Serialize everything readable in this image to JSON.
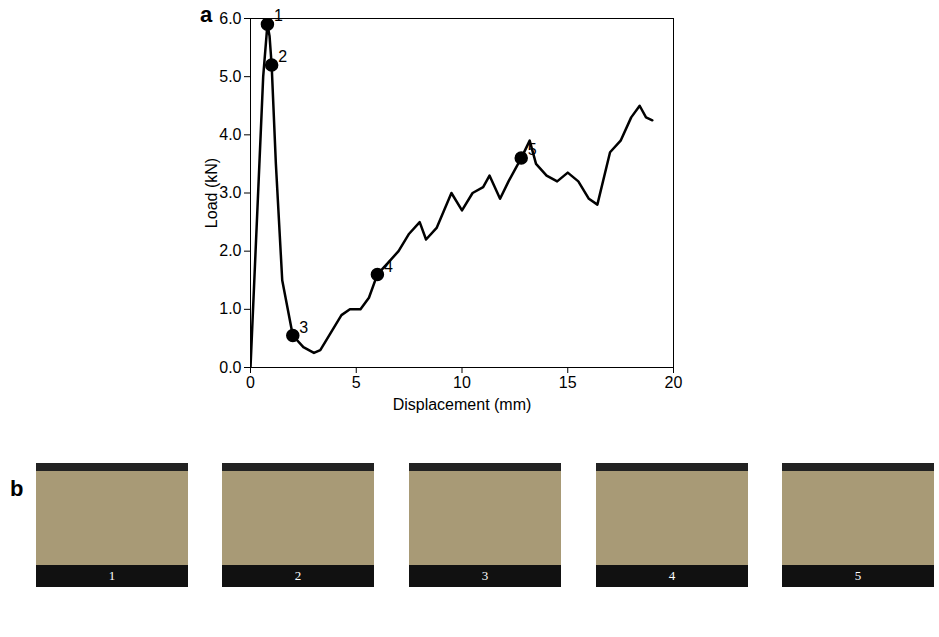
{
  "chart_data": {
    "type": "line",
    "panel_label": "a",
    "x_label": "Displacement (mm)",
    "y_label": "Load (kN)",
    "x": [
      0,
      0.3,
      0.6,
      0.8,
      0.9,
      1.0,
      1.2,
      1.5,
      2.0,
      2.5,
      3.0,
      3.3,
      3.8,
      4.3,
      4.7,
      5.2,
      5.6,
      6.0,
      6.5,
      7.0,
      7.5,
      8.0,
      8.3,
      8.8,
      9.5,
      10.0,
      10.5,
      11.0,
      11.3,
      11.8,
      12.2,
      12.8,
      13.2,
      13.5,
      14.0,
      14.5,
      15.0,
      15.5,
      16.0,
      16.4,
      17.0,
      17.5,
      18.0,
      18.4,
      18.7,
      19.0
    ],
    "values": [
      0,
      2.5,
      5.0,
      5.9,
      5.7,
      5.2,
      3.5,
      1.5,
      0.55,
      0.35,
      0.25,
      0.3,
      0.6,
      0.9,
      1.0,
      1.0,
      1.2,
      1.6,
      1.8,
      2.0,
      2.3,
      2.5,
      2.2,
      2.4,
      3.0,
      2.7,
      3.0,
      3.1,
      3.3,
      2.9,
      3.2,
      3.6,
      3.9,
      3.5,
      3.3,
      3.2,
      3.35,
      3.2,
      2.9,
      2.8,
      3.7,
      3.9,
      4.3,
      4.5,
      4.3,
      4.25
    ],
    "color": "#000000",
    "marker": "circle",
    "points": [
      {
        "label": "1",
        "x": 0.8,
        "y": 5.9
      },
      {
        "label": "2",
        "x": 1.0,
        "y": 5.2
      },
      {
        "label": "3",
        "x": 2.0,
        "y": 0.55
      },
      {
        "label": "4",
        "x": 6.0,
        "y": 1.6
      },
      {
        "label": "5",
        "x": 12.8,
        "y": 3.6
      }
    ],
    "xlim": [
      0,
      20
    ],
    "xticks": [
      0,
      5,
      10,
      15,
      20
    ],
    "ylim": [
      0,
      6
    ],
    "yticks": [
      0,
      1,
      2,
      3,
      4,
      5,
      6
    ],
    "grid": false
  },
  "panel_b": {
    "panel_label": "b",
    "photo_labels": [
      "1",
      "2",
      "3",
      "4",
      "5"
    ]
  }
}
